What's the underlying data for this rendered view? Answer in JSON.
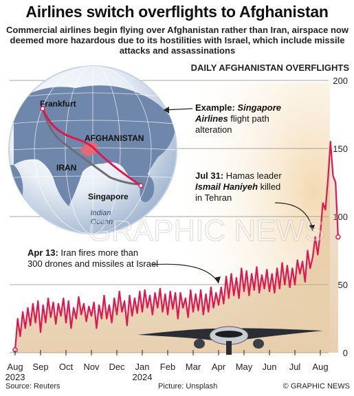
{
  "header": {
    "title": "Airlines switch overflights to Afghanistan",
    "subtitle": "Commercial airlines begin flying over Afghanistan rather than Iran, airspace now deemed more hazardous due to its hostilities with Israel, which include missile attacks and assassinations"
  },
  "map": {
    "labels": [
      "Frankfurt",
      "AFGHANISTAN",
      "IRAN",
      "Singapore",
      "Indian Ocean"
    ],
    "caption_bold": "Example: ",
    "caption_italic": "Singapore Airlines",
    "caption_rest": " flight path alteration"
  },
  "annotations": [
    {
      "bold": "Apr 13:",
      "text": " Iran fires more than 300 drones and missiles at Israel"
    },
    {
      "bold": "Jul 31:",
      "text": " Hamas leader ",
      "italic": "Ismail Haniyeh",
      "text2": " killed in Tehran"
    }
  ],
  "footer": {
    "source": "Source: Reuters",
    "picture": "Picture: Unsplash",
    "credit": "© GRAPHIC NEWS"
  },
  "watermark": "GRAPHIC NEWS",
  "colors": {
    "line": "#e0174e",
    "area": "#cfa56a",
    "grid": "#888888"
  },
  "chart_data": {
    "type": "area",
    "title": "DAILY AFGHANISTAN OVERFLIGHTS",
    "ylim": [
      0,
      200
    ],
    "yticks": [
      0,
      50,
      100,
      150,
      200
    ],
    "xticks": [
      "Aug",
      "Sep",
      "Oct",
      "Nov",
      "Dec",
      "Jan",
      "Feb",
      "Mar",
      "Apr",
      "May",
      "Jun",
      "Jul",
      "Aug"
    ],
    "xtick_years": {
      "0": "2023",
      "5": "2024"
    },
    "series": [
      {
        "values": [
          [
            0.0,
            2
          ],
          [
            0.1,
            25
          ],
          [
            0.2,
            12
          ],
          [
            0.3,
            30
          ],
          [
            0.4,
            18
          ],
          [
            0.5,
            33
          ],
          [
            0.6,
            20
          ],
          [
            0.7,
            36
          ],
          [
            0.8,
            22
          ],
          [
            0.9,
            38
          ],
          [
            1.0,
            15
          ],
          [
            1.1,
            35
          ],
          [
            1.2,
            22
          ],
          [
            1.3,
            40
          ],
          [
            1.4,
            26
          ],
          [
            1.5,
            37
          ],
          [
            1.6,
            21
          ],
          [
            1.7,
            36
          ],
          [
            1.8,
            27
          ],
          [
            1.9,
            40
          ],
          [
            2.0,
            22
          ],
          [
            2.1,
            38
          ],
          [
            2.2,
            18
          ],
          [
            2.3,
            33
          ],
          [
            2.4,
            25
          ],
          [
            2.5,
            41
          ],
          [
            2.6,
            28
          ],
          [
            2.7,
            36
          ],
          [
            2.8,
            23
          ],
          [
            2.9,
            34
          ],
          [
            3.0,
            27
          ],
          [
            3.1,
            37
          ],
          [
            3.2,
            18
          ],
          [
            3.3,
            35
          ],
          [
            3.4,
            25
          ],
          [
            3.5,
            42
          ],
          [
            3.6,
            25
          ],
          [
            3.7,
            35
          ],
          [
            3.8,
            22
          ],
          [
            3.9,
            40
          ],
          [
            4.0,
            28
          ],
          [
            4.1,
            45
          ],
          [
            4.2,
            30
          ],
          [
            4.3,
            38
          ],
          [
            4.4,
            20
          ],
          [
            4.5,
            42
          ],
          [
            4.6,
            27
          ],
          [
            4.7,
            40
          ],
          [
            4.8,
            29
          ],
          [
            4.9,
            45
          ],
          [
            5.0,
            30
          ],
          [
            5.1,
            46
          ],
          [
            5.2,
            33
          ],
          [
            5.3,
            42
          ],
          [
            5.4,
            28
          ],
          [
            5.5,
            44
          ],
          [
            5.6,
            33
          ],
          [
            5.7,
            47
          ],
          [
            5.8,
            30
          ],
          [
            5.9,
            43
          ],
          [
            6.0,
            28
          ],
          [
            6.1,
            45
          ],
          [
            6.2,
            32
          ],
          [
            6.3,
            44
          ],
          [
            6.4,
            25
          ],
          [
            6.5,
            44
          ],
          [
            6.6,
            33
          ],
          [
            6.7,
            40
          ],
          [
            6.8,
            26
          ],
          [
            6.9,
            46
          ],
          [
            7.0,
            30
          ],
          [
            7.1,
            43
          ],
          [
            7.2,
            31
          ],
          [
            7.3,
            46
          ],
          [
            7.4,
            28
          ],
          [
            7.5,
            43
          ],
          [
            7.6,
            30
          ],
          [
            7.7,
            48
          ],
          [
            7.8,
            33
          ],
          [
            7.9,
            44
          ],
          [
            8.0,
            35
          ],
          [
            8.1,
            48
          ],
          [
            8.2,
            36
          ],
          [
            8.3,
            56
          ],
          [
            8.4,
            40
          ],
          [
            8.5,
            58
          ],
          [
            8.6,
            42
          ],
          [
            8.7,
            55
          ],
          [
            8.8,
            40
          ],
          [
            8.9,
            62
          ],
          [
            9.0,
            45
          ],
          [
            9.1,
            60
          ],
          [
            9.2,
            42
          ],
          [
            9.3,
            58
          ],
          [
            9.4,
            46
          ],
          [
            9.5,
            63
          ],
          [
            9.6,
            44
          ],
          [
            9.7,
            57
          ],
          [
            9.8,
            47
          ],
          [
            9.9,
            61
          ],
          [
            10.0,
            45
          ],
          [
            10.1,
            58
          ],
          [
            10.2,
            44
          ],
          [
            10.3,
            62
          ],
          [
            10.4,
            47
          ],
          [
            10.5,
            66
          ],
          [
            10.6,
            50
          ],
          [
            10.7,
            64
          ],
          [
            10.8,
            48
          ],
          [
            10.9,
            62
          ],
          [
            11.0,
            50
          ],
          [
            11.1,
            68
          ],
          [
            11.2,
            58
          ],
          [
            11.3,
            67
          ],
          [
            11.4,
            52
          ],
          [
            11.5,
            75
          ],
          [
            11.6,
            62
          ],
          [
            11.7,
            70
          ],
          [
            11.8,
            85
          ],
          [
            11.9,
            72
          ],
          [
            12.0,
            88
          ],
          [
            12.1,
            110
          ],
          [
            12.2,
            105
          ],
          [
            12.3,
            127
          ],
          [
            12.4,
            155
          ],
          [
            12.5,
            130
          ],
          [
            12.6,
            125
          ],
          [
            12.7,
            85
          ]
        ]
      }
    ]
  }
}
